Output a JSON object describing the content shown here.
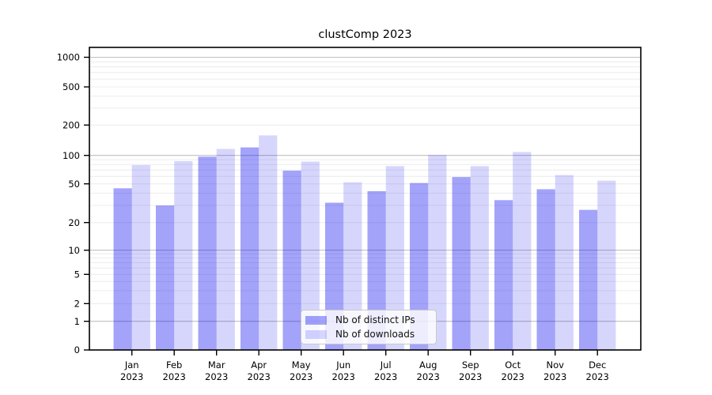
{
  "chart_data": {
    "type": "bar",
    "title": "clustComp 2023",
    "categories": [
      "Jan",
      "Feb",
      "Mar",
      "Apr",
      "May",
      "Jun",
      "Jul",
      "Aug",
      "Sep",
      "Oct",
      "Nov",
      "Dec"
    ],
    "category_year_line": "2023",
    "series": [
      {
        "name": "Nb of distinct IPs",
        "color": "rgba(0,0,240,0.36)",
        "values": [
          45,
          30,
          97,
          120,
          69,
          32,
          42,
          51,
          59,
          34,
          44,
          27
        ]
      },
      {
        "name": "Nb of downloads",
        "color": "rgba(0,0,240,0.16)",
        "values": [
          79,
          87,
          116,
          158,
          86,
          52,
          77,
          101,
          77,
          108,
          62,
          54
        ]
      }
    ],
    "yscale": "symlog",
    "y_ticks": [
      0,
      1,
      2,
      5,
      10,
      20,
      50,
      100,
      200,
      500,
      1000
    ],
    "ylim": [
      0,
      1400
    ],
    "xlabel": "",
    "ylabel": "",
    "grid": true,
    "legend_position": "lower center"
  },
  "colors": {
    "major_grid": "#c0c0c0",
    "minor_grid": "#ececec",
    "axis": "#000000",
    "tick_label": "#000000"
  }
}
